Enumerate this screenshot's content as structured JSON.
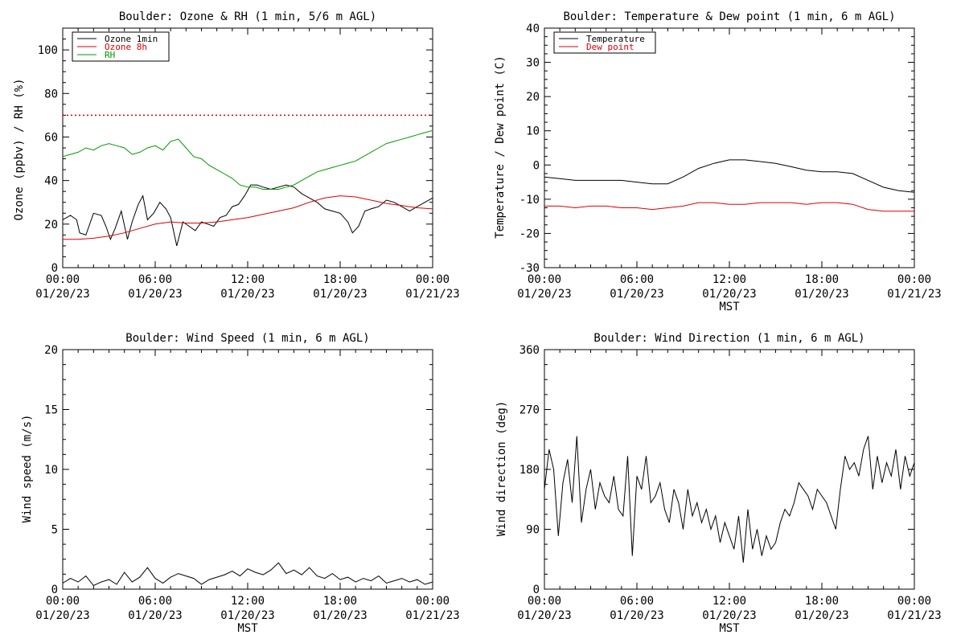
{
  "colors": {
    "black": "#000000",
    "red": "#dd0000",
    "green": "#009900",
    "ref_line": "#dd0000"
  },
  "chart_data": [
    {
      "type": "line",
      "title": "Boulder: Ozone & RH (1 min, 5/6 m AGL)",
      "ylabel": "Ozone (ppbv) / RH (%)",
      "xlabel": "",
      "xlim": [
        0,
        24
      ],
      "ylim": [
        0,
        110
      ],
      "yticks": [
        0,
        20,
        40,
        60,
        80,
        100
      ],
      "xticks": [
        {
          "value": 0,
          "label": "00:00",
          "date": "01/20/23"
        },
        {
          "value": 6,
          "label": "06:00",
          "date": "01/20/23"
        },
        {
          "value": 12,
          "label": "12:00",
          "date": "01/20/23"
        },
        {
          "value": 18,
          "label": "18:00",
          "date": "01/20/23"
        },
        {
          "value": 24,
          "label": "00:00",
          "date": "01/21/23"
        }
      ],
      "legend_position": "top-left",
      "reference_line": {
        "y": 70,
        "style": "dotted",
        "color": "#dd0000"
      },
      "series": [
        {
          "name": "Ozone 1min",
          "color": "#000000",
          "x": [
            0,
            0.5,
            0.9,
            1.1,
            1.5,
            2,
            2.5,
            2.8,
            3.1,
            3.4,
            3.8,
            4.2,
            4.5,
            4.9,
            5.2,
            5.5,
            5.9,
            6.3,
            6.7,
            7,
            7.4,
            7.8,
            8.2,
            8.6,
            9,
            9.4,
            9.8,
            10.2,
            10.6,
            11,
            11.4,
            11.8,
            12.2,
            12.6,
            13,
            13.5,
            14,
            14.5,
            15,
            15.5,
            16,
            16.5,
            17,
            17.5,
            18,
            18.5,
            18.8,
            19.2,
            19.6,
            20,
            20.5,
            21,
            21.5,
            22,
            22.5,
            23,
            23.5,
            24
          ],
          "y": [
            22,
            24,
            22,
            16,
            15,
            25,
            24,
            19,
            13,
            18,
            26,
            13,
            21,
            29,
            33,
            22,
            25,
            30,
            27,
            23,
            10,
            21,
            19,
            17,
            21,
            20,
            19,
            23,
            24,
            28,
            29,
            33,
            38,
            38,
            37,
            36,
            37,
            38,
            37,
            34,
            32,
            30,
            27,
            26,
            25,
            21,
            16,
            19,
            26,
            27,
            28,
            31,
            30,
            28,
            26,
            28,
            30,
            32
          ]
        },
        {
          "name": "Ozone 8h",
          "color": "#dd0000",
          "x": [
            0,
            1,
            2,
            3,
            4,
            5,
            6,
            7,
            8,
            9,
            10,
            11,
            12,
            13,
            14,
            15,
            16,
            17,
            18,
            19,
            20,
            21,
            22,
            23,
            24
          ],
          "y": [
            13,
            13,
            13.5,
            14.5,
            16,
            18,
            20,
            21,
            20.5,
            20.5,
            21,
            22,
            23,
            24.5,
            26,
            27.5,
            30,
            32,
            33,
            32.5,
            31,
            29.5,
            28.5,
            27.5,
            27
          ]
        },
        {
          "name": "RH",
          "color": "#009900",
          "x": [
            0,
            0.5,
            1,
            1.5,
            2,
            2.5,
            3,
            3.5,
            4,
            4.5,
            5,
            5.5,
            6,
            6.5,
            7,
            7.5,
            8,
            8.5,
            9,
            9.5,
            10,
            10.5,
            11,
            11.5,
            12,
            12.5,
            13,
            13.5,
            14,
            14.5,
            15,
            15.5,
            16,
            16.5,
            17,
            17.5,
            18,
            18.5,
            19,
            19.5,
            20,
            20.5,
            21,
            21.5,
            22,
            22.5,
            23,
            23.5,
            24
          ],
          "y": [
            51,
            52,
            53,
            55,
            54,
            56,
            57,
            56,
            55,
            52,
            53,
            55,
            56,
            54,
            58,
            59,
            55,
            51,
            50,
            47,
            45,
            43,
            41,
            38,
            37,
            37,
            36,
            36,
            36,
            37,
            38,
            40,
            42,
            44,
            45,
            46,
            47,
            48,
            49,
            51,
            53,
            55,
            57,
            58,
            59,
            60,
            61,
            62,
            63
          ]
        }
      ]
    },
    {
      "type": "line",
      "title": "Boulder: Temperature & Dew point (1 min, 6 m AGL)",
      "ylabel": "Temperature / Dew point (C)",
      "xlabel": "MST",
      "xlim": [
        0,
        24
      ],
      "ylim": [
        -30,
        40
      ],
      "yticks": [
        -30,
        -20,
        -10,
        0,
        10,
        20,
        30,
        40
      ],
      "xticks": [
        {
          "value": 0,
          "label": "00:00",
          "date": "01/20/23"
        },
        {
          "value": 6,
          "label": "06:00",
          "date": "01/20/23"
        },
        {
          "value": 12,
          "label": "12:00",
          "date": "01/20/23"
        },
        {
          "value": 18,
          "label": "18:00",
          "date": "01/20/23"
        },
        {
          "value": 24,
          "label": "00:00",
          "date": "01/21/23"
        }
      ],
      "legend_position": "top-left",
      "series": [
        {
          "name": "Temperature",
          "color": "#000000",
          "x": [
            0,
            1,
            2,
            3,
            4,
            5,
            6,
            7,
            8,
            9,
            10,
            11,
            12,
            13,
            14,
            15,
            16,
            17,
            18,
            19,
            20,
            21,
            22,
            23,
            24
          ],
          "y": [
            -3.5,
            -4,
            -4.5,
            -4.5,
            -4.5,
            -4.5,
            -5,
            -5.5,
            -5.5,
            -3.5,
            -1,
            0.5,
            1.5,
            1.5,
            1,
            0.5,
            -0.5,
            -1.5,
            -2,
            -2,
            -2.5,
            -4.5,
            -6.5,
            -7.5,
            -8
          ]
        },
        {
          "name": "Dew point",
          "color": "#dd0000",
          "x": [
            0,
            1,
            2,
            3,
            4,
            5,
            6,
            7,
            8,
            9,
            10,
            11,
            12,
            13,
            14,
            15,
            16,
            17,
            18,
            19,
            20,
            21,
            22,
            23,
            24
          ],
          "y": [
            -12,
            -12,
            -12.5,
            -12,
            -12,
            -12.5,
            -12.5,
            -13,
            -12.5,
            -12,
            -11,
            -11,
            -11.5,
            -11.5,
            -11,
            -11,
            -11,
            -11.5,
            -11,
            -11,
            -11.5,
            -13,
            -13.5,
            -13.5,
            -13.5
          ]
        }
      ]
    },
    {
      "type": "line",
      "title": "Boulder: Wind Speed (1 min, 6 m AGL)",
      "ylabel": "Wind speed (m/s)",
      "xlabel": "MST",
      "xlim": [
        0,
        24
      ],
      "ylim": [
        0,
        20
      ],
      "yticks": [
        0,
        5,
        10,
        15,
        20
      ],
      "xticks": [
        {
          "value": 0,
          "label": "00:00",
          "date": "01/20/23"
        },
        {
          "value": 6,
          "label": "06:00",
          "date": "01/20/23"
        },
        {
          "value": 12,
          "label": "12:00",
          "date": "01/20/23"
        },
        {
          "value": 18,
          "label": "18:00",
          "date": "01/20/23"
        },
        {
          "value": 24,
          "label": "00:00",
          "date": "01/21/23"
        }
      ],
      "series": [
        {
          "name": "",
          "color": "#000000",
          "x": [
            0,
            0.5,
            1,
            1.5,
            2,
            2.5,
            3,
            3.5,
            4,
            4.5,
            5,
            5.5,
            6,
            6.5,
            7,
            7.5,
            8,
            8.5,
            9,
            9.5,
            10,
            10.5,
            11,
            11.5,
            12,
            12.5,
            13,
            13.5,
            14,
            14.5,
            15,
            15.5,
            16,
            16.5,
            17,
            17.5,
            18,
            18.5,
            19,
            19.5,
            20,
            20.5,
            21,
            21.5,
            22,
            22.5,
            23,
            23.5,
            24
          ],
          "y": [
            0.5,
            0.9,
            0.6,
            1.1,
            0.3,
            0.6,
            0.8,
            0.4,
            1.4,
            0.6,
            1.0,
            1.8,
            0.9,
            0.5,
            1.0,
            1.3,
            1.1,
            0.9,
            0.4,
            0.8,
            1.0,
            1.2,
            1.5,
            1.1,
            1.7,
            1.4,
            1.2,
            1.6,
            2.2,
            1.3,
            1.6,
            1.2,
            1.8,
            1.1,
            0.9,
            1.3,
            0.8,
            1.0,
            0.6,
            0.9,
            0.7,
            1.1,
            0.5,
            0.7,
            0.9,
            0.6,
            0.8,
            0.4,
            0.6
          ]
        }
      ]
    },
    {
      "type": "line",
      "title": "Boulder: Wind Direction (1 min, 6 m AGL)",
      "ylabel": "Wind direction (deg)",
      "xlabel": "MST",
      "xlim": [
        0,
        24
      ],
      "ylim": [
        0,
        360
      ],
      "yticks": [
        0,
        90,
        180,
        270,
        360
      ],
      "xticks": [
        {
          "value": 0,
          "label": "00:00",
          "date": "01/20/23"
        },
        {
          "value": 6,
          "label": "06:00",
          "date": "01/20/23"
        },
        {
          "value": 12,
          "label": "12:00",
          "date": "01/20/23"
        },
        {
          "value": 18,
          "label": "18:00",
          "date": "01/20/23"
        },
        {
          "value": 24,
          "label": "00:00",
          "date": "01/21/23"
        }
      ],
      "series": [
        {
          "name": "",
          "color": "#000000",
          "x": [
            0,
            0.3,
            0.6,
            0.9,
            1.2,
            1.5,
            1.8,
            2.1,
            2.4,
            2.7,
            3.0,
            3.3,
            3.6,
            3.9,
            4.2,
            4.5,
            4.8,
            5.1,
            5.4,
            5.7,
            6.0,
            6.3,
            6.6,
            6.9,
            7.2,
            7.5,
            7.8,
            8.1,
            8.4,
            8.7,
            9.0,
            9.3,
            9.6,
            9.9,
            10.2,
            10.5,
            10.8,
            11.1,
            11.4,
            11.7,
            12.0,
            12.3,
            12.6,
            12.9,
            13.2,
            13.5,
            13.8,
            14.1,
            14.4,
            14.7,
            15.0,
            15.3,
            15.6,
            15.9,
            16.2,
            16.5,
            16.8,
            17.1,
            17.4,
            17.7,
            18.0,
            18.3,
            18.6,
            18.9,
            19.2,
            19.5,
            19.8,
            20.1,
            20.4,
            20.7,
            21.0,
            21.3,
            21.6,
            21.9,
            22.2,
            22.5,
            22.8,
            23.1,
            23.4,
            23.7,
            24.0
          ],
          "y": [
            150,
            210,
            180,
            80,
            160,
            195,
            130,
            230,
            100,
            150,
            180,
            120,
            160,
            140,
            130,
            170,
            120,
            110,
            200,
            50,
            170,
            150,
            200,
            130,
            140,
            160,
            120,
            100,
            150,
            130,
            90,
            150,
            110,
            130,
            100,
            120,
            90,
            110,
            70,
            100,
            80,
            60,
            110,
            40,
            120,
            60,
            90,
            50,
            80,
            60,
            70,
            100,
            120,
            110,
            130,
            160,
            150,
            140,
            120,
            150,
            140,
            130,
            110,
            90,
            150,
            200,
            180,
            190,
            170,
            210,
            230,
            150,
            200,
            160,
            190,
            170,
            210,
            150,
            200,
            170,
            190
          ]
        }
      ]
    }
  ]
}
